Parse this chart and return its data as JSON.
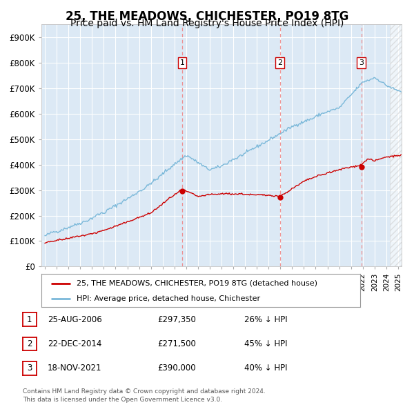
{
  "title": "25, THE MEADOWS, CHICHESTER, PO19 8TG",
  "subtitle": "Price paid vs. HM Land Registry's House Price Index (HPI)",
  "ylim": [
    0,
    950000
  ],
  "yticks": [
    0,
    100000,
    200000,
    300000,
    400000,
    500000,
    600000,
    700000,
    800000,
    900000
  ],
  "ytick_labels": [
    "£0",
    "£100K",
    "£200K",
    "£300K",
    "£400K",
    "£500K",
    "£600K",
    "£700K",
    "£800K",
    "£900K"
  ],
  "background_color": "#ffffff",
  "plot_bg_color": "#dce9f5",
  "grid_color": "#ffffff",
  "hpi_line_color": "#7ab8d9",
  "price_line_color": "#cc0000",
  "sale_marker_color": "#cc0000",
  "dashed_line_color": "#ee8888",
  "title_fontsize": 12,
  "subtitle_fontsize": 10,
  "legend_label_price": "25, THE MEADOWS, CHICHESTER, PO19 8TG (detached house)",
  "legend_label_hpi": "HPI: Average price, detached house, Chichester",
  "sales": [
    {
      "num": 1,
      "date": "25-AUG-2006",
      "price": 297350,
      "pct": "26%",
      "x_year": 2006.65
    },
    {
      "num": 2,
      "date": "22-DEC-2014",
      "price": 271500,
      "pct": "45%",
      "x_year": 2014.97
    },
    {
      "num": 3,
      "date": "18-NOV-2021",
      "price": 390000,
      "pct": "40%",
      "x_year": 2021.88
    }
  ],
  "footer_line1": "Contains HM Land Registry data © Crown copyright and database right 2024.",
  "footer_line2": "This data is licensed under the Open Government Licence v3.0.",
  "xmin": 1994.7,
  "xmax": 2025.3
}
